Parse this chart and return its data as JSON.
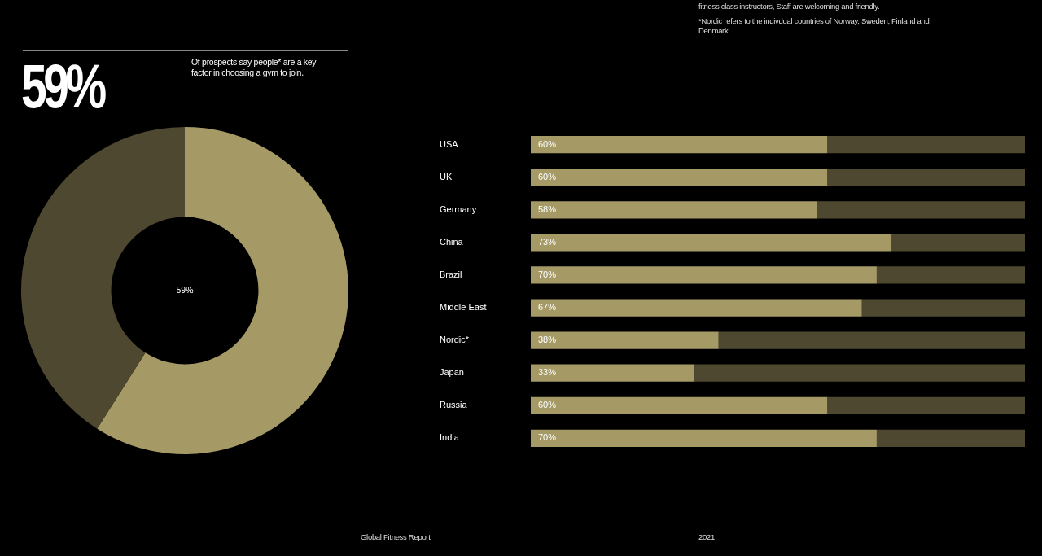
{
  "chart_data": [
    {
      "type": "donut",
      "title": "59%",
      "subtitle": "Of prospects say people* are a key factor in choosing a gym to join.",
      "categories": [
        null,
        null
      ],
      "values": [
        59,
        41
      ],
      "colors": [
        "#a59a66",
        "#4f4830"
      ],
      "legend": false,
      "annotations": [
        "59%"
      ]
    },
    {
      "type": "bar",
      "orientation": "horizontal",
      "stacked": true,
      "categories": [
        "USA",
        "UK",
        "Germany",
        "China",
        "Brazil",
        "Middle East",
        "Nordic*",
        "Japan",
        "Russia",
        "India"
      ],
      "series": [
        {
          "color": "#a59a66",
          "values": [
            60,
            60,
            58,
            73,
            70,
            67,
            38,
            33,
            60,
            70
          ],
          "value_labels": [
            "60%",
            "60%",
            "58%",
            "73%",
            "70%",
            "67%",
            "38%",
            "33%",
            "60%",
            "70%"
          ]
        },
        {
          "color": "#4f4830",
          "values": [
            40,
            40,
            42,
            27,
            30,
            33,
            62,
            67,
            40,
            30
          ]
        }
      ],
      "xlim": [
        0,
        100
      ],
      "tick_labels": "y",
      "legend": false,
      "annotations": [
        "fitness class instructors, Staff are welcoming and friendly.",
        "*Nordic refers to the indivdual countries of Norway, Sweden, Finland and Denmark.",
        "Global Fitness Report",
        "2021"
      ]
    }
  ]
}
